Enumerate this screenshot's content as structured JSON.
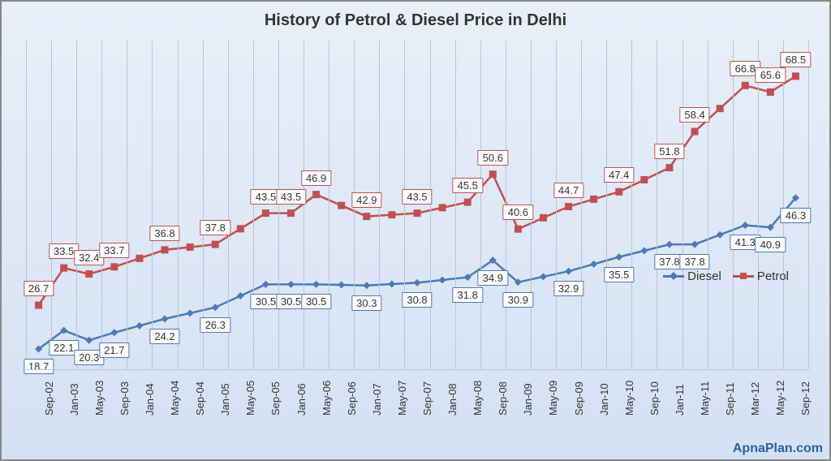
{
  "title": "History of Petrol & Diesel Price in Delhi",
  "watermark": "ApnaPlan.com",
  "chart": {
    "type": "line",
    "background_gradient": [
      "#e8eff9",
      "#d4e1f3"
    ],
    "grid_color": "#b8c4d8",
    "border_color": "#888888",
    "title_fontsize": 20,
    "label_fontsize": 13,
    "categories": [
      "Sep-02",
      "Jan-03",
      "May-03",
      "Sep-03",
      "Jan-04",
      "May-04",
      "Sep-04",
      "Jan-05",
      "May-05",
      "Sep-05",
      "Jan-06",
      "May-06",
      "Sep-06",
      "Jan-07",
      "May-07",
      "Sep-07",
      "Jan-08",
      "May-08",
      "Sep-08",
      "Jan-09",
      "May-09",
      "Sep-09",
      "Jan-10",
      "May-10",
      "Sep-10",
      "Jan-11",
      "May-11",
      "Sep-11",
      "Mar-12",
      "May-12",
      "Sep-12"
    ],
    "ylim": [
      15,
      75
    ],
    "series": [
      {
        "name": "Diesel",
        "color": "#4a7ab8",
        "marker": "diamond",
        "line_width": 2.5,
        "marker_size": 9,
        "label_position": "below",
        "values": [
          18.7,
          22.1,
          20.3,
          21.7,
          24.2,
          26.3,
          30.5,
          30.5,
          30.5,
          30.3,
          30.8,
          31.8,
          34.9,
          30.9,
          32.9,
          35.5,
          37.8,
          37.8,
          41.3,
          40.9,
          46.3
        ],
        "value_x_indices": [
          0,
          1,
          2,
          3,
          5,
          7,
          9,
          10,
          11,
          13,
          15,
          17,
          18,
          19,
          21,
          23,
          25,
          26,
          28,
          29,
          30
        ]
      },
      {
        "name": "Petrol",
        "color": "#c05050",
        "marker": "square",
        "line_width": 2.5,
        "marker_size": 9,
        "label_position": "above",
        "values": [
          26.7,
          33.5,
          32.4,
          33.7,
          36.8,
          37.8,
          43.5,
          43.5,
          46.9,
          42.9,
          43.5,
          45.5,
          50.6,
          40.6,
          44.7,
          47.4,
          51.8,
          58.4,
          66.8,
          65.6,
          68.5
        ],
        "value_x_indices": [
          0,
          1,
          2,
          3,
          5,
          7,
          9,
          10,
          11,
          13,
          15,
          17,
          18,
          19,
          21,
          23,
          25,
          26,
          28,
          29,
          30
        ]
      }
    ],
    "legend": {
      "items": [
        {
          "label": "Diesel",
          "color": "#4a7ab8",
          "marker": "diamond"
        },
        {
          "label": "Petrol",
          "color": "#c05050",
          "marker": "square"
        }
      ]
    }
  }
}
